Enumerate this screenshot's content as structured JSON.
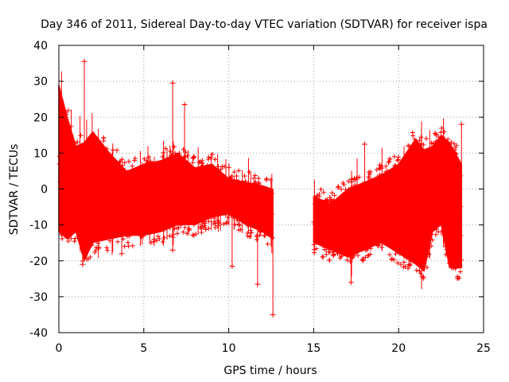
{
  "chart_data": {
    "type": "scatter",
    "title": "Day 346 of 2011, Sidereal Day-to-day VTEC variation (SDTVAR) for receiver ispa",
    "xlabel": "GPS time / hours",
    "ylabel": "SDTVAR / TECUs",
    "xlim": [
      0,
      25
    ],
    "ylim": [
      -40,
      40
    ],
    "xticks": [
      0,
      5,
      10,
      15,
      20,
      25
    ],
    "yticks": [
      -40,
      -30,
      -20,
      -10,
      0,
      10,
      20,
      30,
      40
    ],
    "grid": true,
    "marker": "plus",
    "color": "#ff0000",
    "description_series": [
      {
        "name": "band_upper_env",
        "x": [
          0,
          0.5,
          1,
          1.5,
          2,
          3,
          4,
          5,
          6,
          7,
          8,
          9,
          10,
          11,
          12,
          12.6
        ],
        "y": [
          29,
          20,
          12,
          13,
          16,
          10,
          5,
          7,
          8,
          10,
          6,
          7,
          3,
          2,
          1,
          0
        ]
      },
      {
        "name": "band_lower_env",
        "x": [
          0,
          0.5,
          1,
          1.5,
          2,
          3,
          4,
          5,
          6,
          7,
          8,
          9,
          10,
          11,
          12,
          12.6
        ],
        "y": [
          -12,
          -14,
          -12,
          -20,
          -15,
          -14,
          -13,
          -13,
          -12,
          -10,
          -10,
          -8,
          -7,
          -10,
          -12,
          -14
        ]
      },
      {
        "name": "band2_upper_env",
        "x": [
          15,
          16,
          17,
          18,
          19,
          20,
          21,
          21.5,
          22,
          22.5,
          23,
          23.7
        ],
        "y": [
          -2,
          -4,
          0,
          2,
          4,
          7,
          14,
          11,
          12,
          15,
          13,
          7
        ]
      },
      {
        "name": "band2_lower_env",
        "x": [
          15,
          16,
          17,
          18,
          19,
          20,
          21,
          21.5,
          22,
          22.5,
          23,
          23.7
        ],
        "y": [
          -15,
          -17,
          -19,
          -17,
          -15,
          -18,
          -21,
          -23,
          -12,
          -10,
          -22,
          -22
        ]
      }
    ],
    "outliers": [
      {
        "x": 1.5,
        "y": 35.5
      },
      {
        "x": 6.7,
        "y": 29.5
      },
      {
        "x": 7.4,
        "y": 23.5
      },
      {
        "x": 12.6,
        "y": -35
      },
      {
        "x": 11.7,
        "y": -26.5
      },
      {
        "x": 17.2,
        "y": -26
      },
      {
        "x": 18.0,
        "y": 12.5
      },
      {
        "x": 23.7,
        "y": 18
      },
      {
        "x": 10.2,
        "y": -21.5
      },
      {
        "x": 1.4,
        "y": -21
      },
      {
        "x": 3.7,
        "y": -18
      },
      {
        "x": 6.7,
        "y": -17
      }
    ]
  }
}
